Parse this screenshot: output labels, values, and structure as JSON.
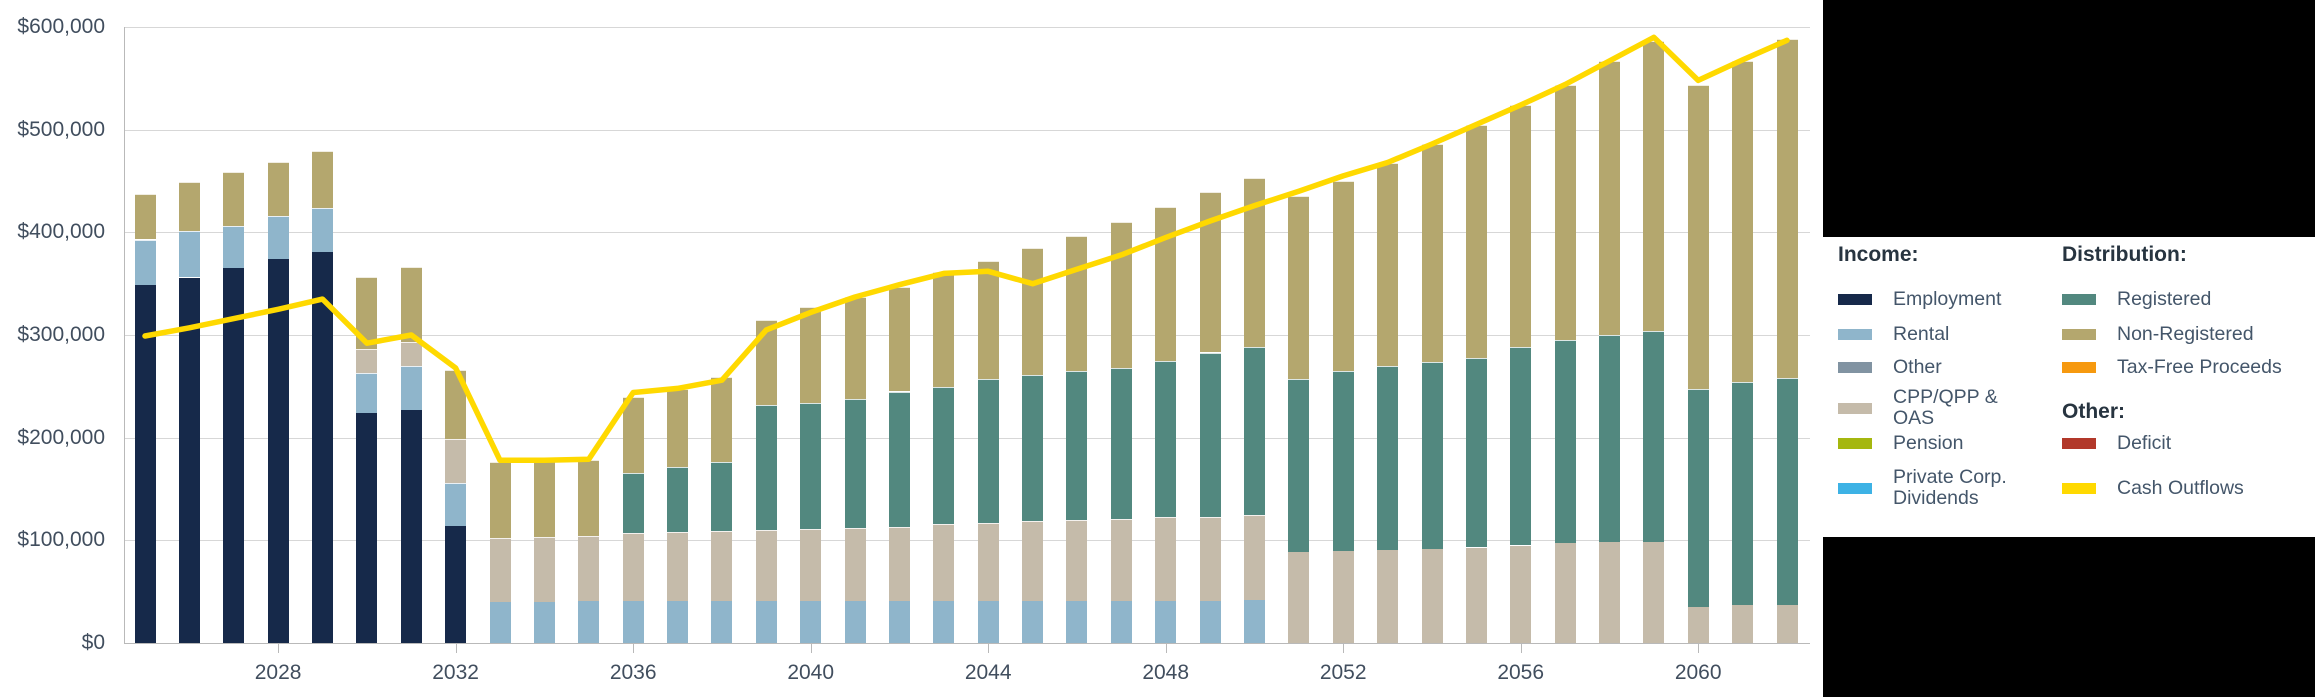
{
  "chart_data": {
    "type": "bar",
    "subtype": "stacked-bars-with-line",
    "title": "",
    "x": [
      2025,
      2026,
      2027,
      2028,
      2029,
      2030,
      2031,
      2032,
      2033,
      2034,
      2035,
      2036,
      2037,
      2038,
      2039,
      2040,
      2041,
      2042,
      2043,
      2044,
      2045,
      2046,
      2047,
      2048,
      2049,
      2050,
      2051,
      2052,
      2053,
      2054,
      2055,
      2056,
      2057,
      2058,
      2059,
      2060,
      2061,
      2062
    ],
    "x_tick_labels": [
      "2028",
      "2032",
      "2036",
      "2040",
      "2044",
      "2048",
      "2052",
      "2056",
      "2060"
    ],
    "ylim": [
      0,
      600000
    ],
    "y_tick_interval": 100000,
    "y_tick_labels": [
      "$0",
      "$100,000",
      "$200,000",
      "$300,000",
      "$400,000",
      "$500,000",
      "$600,000"
    ],
    "grid": "horizontal",
    "legend_position": "right",
    "series": [
      {
        "name": "Employment",
        "group": "Income",
        "color": "employment",
        "values": [
          349000,
          356000,
          365000,
          374000,
          381000,
          224000,
          227000,
          114000,
          0,
          0,
          0,
          0,
          0,
          0,
          0,
          0,
          0,
          0,
          0,
          0,
          0,
          0,
          0,
          0,
          0,
          0,
          0,
          0,
          0,
          0,
          0,
          0,
          0,
          0,
          0,
          0,
          0,
          0
        ]
      },
      {
        "name": "Rental",
        "group": "Income",
        "color": "rental",
        "values": [
          44000,
          45000,
          41000,
          42000,
          43000,
          39000,
          43000,
          42000,
          40000,
          40000,
          41000,
          41000,
          41000,
          41000,
          41000,
          41000,
          41000,
          41000,
          41000,
          41000,
          41000,
          41000,
          41000,
          41000,
          41000,
          42000,
          0,
          0,
          0,
          0,
          0,
          0,
          0,
          0,
          0,
          0,
          0,
          0
        ]
      },
      {
        "name": "CPP/QPP & OAS",
        "group": "Income",
        "color": "cpp_oas",
        "values": [
          0,
          0,
          0,
          0,
          0,
          23000,
          23000,
          43000,
          62000,
          63000,
          63000,
          66000,
          67000,
          68000,
          69000,
          70000,
          71000,
          72000,
          75000,
          76000,
          78000,
          79000,
          80000,
          82000,
          82000,
          83000,
          89000,
          90000,
          91000,
          92000,
          93000,
          95000,
          97000,
          98000,
          98000,
          35000,
          37000,
          37000
        ]
      },
      {
        "name": "Registered",
        "group": "Distribution",
        "color": "registered",
        "values": [
          0,
          0,
          0,
          0,
          0,
          0,
          0,
          0,
          0,
          0,
          0,
          59000,
          63000,
          67000,
          122000,
          123000,
          126000,
          132000,
          133000,
          140000,
          142000,
          145000,
          147000,
          152000,
          160000,
          163000,
          168000,
          175000,
          179000,
          182000,
          185000,
          193000,
          198000,
          202000,
          206000,
          212000,
          217000,
          221000
        ]
      },
      {
        "name": "Non-Registered",
        "group": "Distribution",
        "color": "non_registered",
        "values": [
          44000,
          48000,
          53000,
          53000,
          55000,
          71000,
          73000,
          67000,
          74000,
          74000,
          74000,
          74000,
          76000,
          83000,
          83000,
          93000,
          99000,
          102000,
          112000,
          115000,
          124000,
          131000,
          142000,
          150000,
          156000,
          165000,
          178000,
          185000,
          198000,
          212000,
          227000,
          236000,
          249000,
          267000,
          282000,
          297000,
          313000,
          330000
        ]
      }
    ],
    "line_series": {
      "name": "Cash Outflows",
      "color": "cash_outflows",
      "values": [
        299000,
        307000,
        316000,
        325000,
        335000,
        292000,
        300000,
        268000,
        178000,
        178000,
        179000,
        244000,
        248000,
        256000,
        305000,
        322000,
        337000,
        349000,
        360000,
        362000,
        350000,
        364000,
        378000,
        395000,
        411000,
        426000,
        440000,
        455000,
        468000,
        486000,
        505000,
        524000,
        544000,
        567000,
        590000,
        548000,
        568000,
        587000
      ]
    }
  },
  "legend": {
    "income_header": "Income:",
    "distribution_header": "Distribution:",
    "other_header": "Other:",
    "income": [
      {
        "label": "Employment",
        "color": "employment"
      },
      {
        "label": "Rental",
        "color": "rental"
      },
      {
        "label": "Other",
        "color": "other_income"
      },
      {
        "label": "CPP/QPP & OAS",
        "color": "cpp_oas"
      },
      {
        "label": "Pension",
        "color": "pension"
      },
      {
        "label": "Private Corp. Dividends",
        "color": "private_corp_dividends"
      }
    ],
    "distribution": [
      {
        "label": "Registered",
        "color": "registered"
      },
      {
        "label": "Non-Registered",
        "color": "non_registered"
      },
      {
        "label": "Tax-Free Proceeds",
        "color": "tax_free_proceeds"
      }
    ],
    "other": [
      {
        "label": "Deficit",
        "color": "deficit"
      },
      {
        "label": "Cash Outflows",
        "color": "cash_outflows"
      }
    ]
  },
  "colors": {
    "employment": "#16294a",
    "rental": "#8fb5cb",
    "other_income": "#8193a2",
    "cpp_oas": "#c5bbaa",
    "pension": "#a5b70f",
    "private_corp_dividends": "#3db2e5",
    "registered": "#52887f",
    "non_registered": "#b4a76e",
    "tax_free_proceeds": "#f6990f",
    "deficit": "#b2382a",
    "cash_outflows": "#ffd900"
  }
}
